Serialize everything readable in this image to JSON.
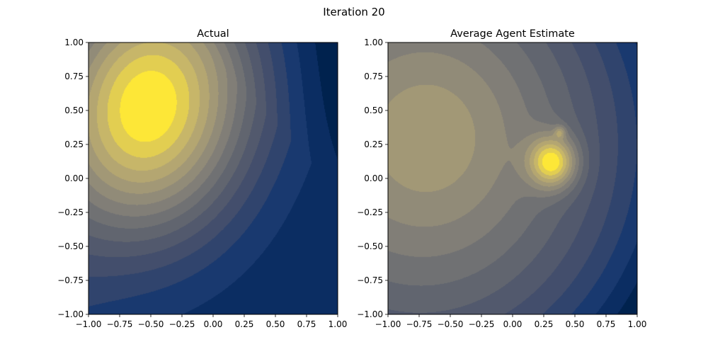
{
  "figure": {
    "suptitle": "Iteration 20",
    "colors": {
      "colormap": "cividis",
      "axes_edge": "#000000",
      "background": "#ffffff"
    }
  },
  "chart_data": [
    {
      "type": "heatmap",
      "subtype": "filled-contour",
      "title": "Actual",
      "xlabel": "",
      "ylabel": "",
      "xlim": [
        -1.0,
        1.0
      ],
      "ylim": [
        -1.0,
        1.0
      ],
      "x_tick_labels": [
        "−1.00",
        "−0.75",
        "−0.50",
        "−0.25",
        "0.00",
        "0.25",
        "0.50",
        "0.75",
        "1.00"
      ],
      "y_tick_labels": [
        "1.00",
        "0.75",
        "0.50",
        "0.25",
        "0.00",
        "−0.25",
        "−0.50",
        "−0.75",
        "−1.00"
      ],
      "colormap": "cividis",
      "contour_levels": 15,
      "grid": false,
      "peaks": [
        {
          "x": -0.52,
          "y": 0.53,
          "relative_value": 1.0
        }
      ],
      "minima": [
        {
          "x": 1.0,
          "y": 1.0,
          "relative_value": 0.0
        },
        {
          "x": -1.0,
          "y": -1.0,
          "relative_value": 0.05
        }
      ]
    },
    {
      "type": "heatmap",
      "subtype": "filled-contour",
      "title": "Average Agent Estimate",
      "xlabel": "",
      "ylabel": "",
      "xlim": [
        -1.0,
        1.0
      ],
      "ylim": [
        -1.0,
        1.0
      ],
      "x_tick_labels": [
        "−1.00",
        "−0.75",
        "−0.50",
        "−0.25",
        "0.00",
        "0.25",
        "0.50",
        "0.75",
        "1.00"
      ],
      "y_tick_labels": [
        "1.00",
        "0.75",
        "0.50",
        "0.25",
        "0.00",
        "−0.25",
        "−0.50",
        "−0.75",
        "−1.00"
      ],
      "colormap": "cividis",
      "contour_levels": 15,
      "grid": false,
      "peaks": [
        {
          "x": 0.32,
          "y": 0.12,
          "relative_value": 1.0
        },
        {
          "x": 0.38,
          "y": 0.34,
          "relative_value": 0.75
        },
        {
          "x": -0.65,
          "y": 0.33,
          "relative_value": 0.5
        }
      ],
      "minima": [
        {
          "x": 1.0,
          "y": -1.0,
          "relative_value": 0.0
        }
      ]
    }
  ]
}
